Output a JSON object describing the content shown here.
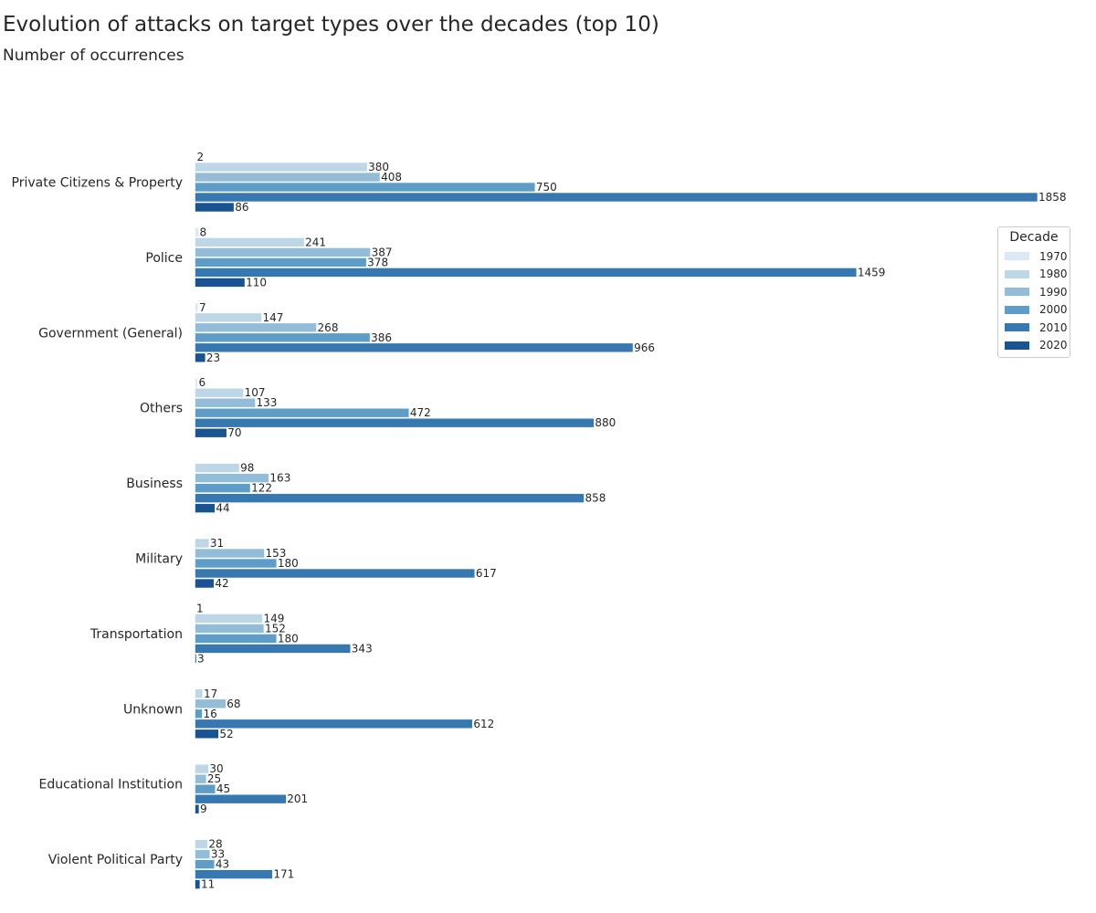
{
  "title": "Evolution of attacks on target types over the decades (top 10)",
  "subtitle": "Number of occurrences",
  "chart_data": {
    "type": "bar",
    "orientation": "horizontal",
    "title": "Evolution of attacks on target types over the decades (top 10)",
    "subtitle": "Number of occurrences",
    "xlabel": "",
    "ylabel": "",
    "grid": false,
    "xlim": [
      0,
      1858
    ],
    "legend": {
      "title": "Decade",
      "placement": "right"
    },
    "categories": [
      "Private Citizens & Property",
      "Police",
      "Government (General)",
      "Others",
      "Business",
      "Military",
      "Transportation",
      "Unknown",
      "Educational Institution",
      "Violent Political Party"
    ],
    "series": [
      {
        "name": "1970",
        "color": "#dbe9f6",
        "values": [
          2,
          8,
          7,
          6,
          0,
          0,
          1,
          0,
          0,
          0
        ],
        "labels": [
          "2",
          "8",
          "7",
          "6",
          "",
          "",
          "1",
          "",
          "",
          ""
        ]
      },
      {
        "name": "1980",
        "color": "#bdd7e7",
        "values": [
          380,
          241,
          147,
          107,
          98,
          31,
          149,
          17,
          30,
          28
        ],
        "labels": [
          "380",
          "241",
          "147",
          "107",
          "98",
          "31",
          "149",
          "17",
          "30",
          "28"
        ]
      },
      {
        "name": "1990",
        "color": "#93bcd8",
        "values": [
          408,
          387,
          268,
          133,
          163,
          153,
          152,
          68,
          25,
          33
        ],
        "labels": [
          "408",
          "387",
          "268",
          "133",
          "163",
          "153",
          "152",
          "68",
          "25",
          "33"
        ]
      },
      {
        "name": "2000",
        "color": "#5e9dc7",
        "values": [
          750,
          378,
          386,
          472,
          122,
          180,
          180,
          16,
          45,
          43
        ],
        "labels": [
          "750",
          "378",
          "386",
          "472",
          "122",
          "180",
          "180",
          "16",
          "45",
          "43"
        ]
      },
      {
        "name": "2010",
        "color": "#3878b0",
        "values": [
          1858,
          1459,
          966,
          880,
          858,
          617,
          343,
          612,
          201,
          171
        ],
        "labels": [
          "1858",
          "1459",
          "966",
          "880",
          "858",
          "617",
          "343",
          "612",
          "201",
          "171"
        ]
      },
      {
        "name": "2020",
        "color": "#1a5392",
        "values": [
          86,
          110,
          23,
          70,
          44,
          42,
          3,
          52,
          9,
          11
        ],
        "labels": [
          "86",
          "110",
          "23",
          "70",
          "44",
          "42",
          "3",
          "52",
          "9",
          "11"
        ]
      }
    ]
  }
}
